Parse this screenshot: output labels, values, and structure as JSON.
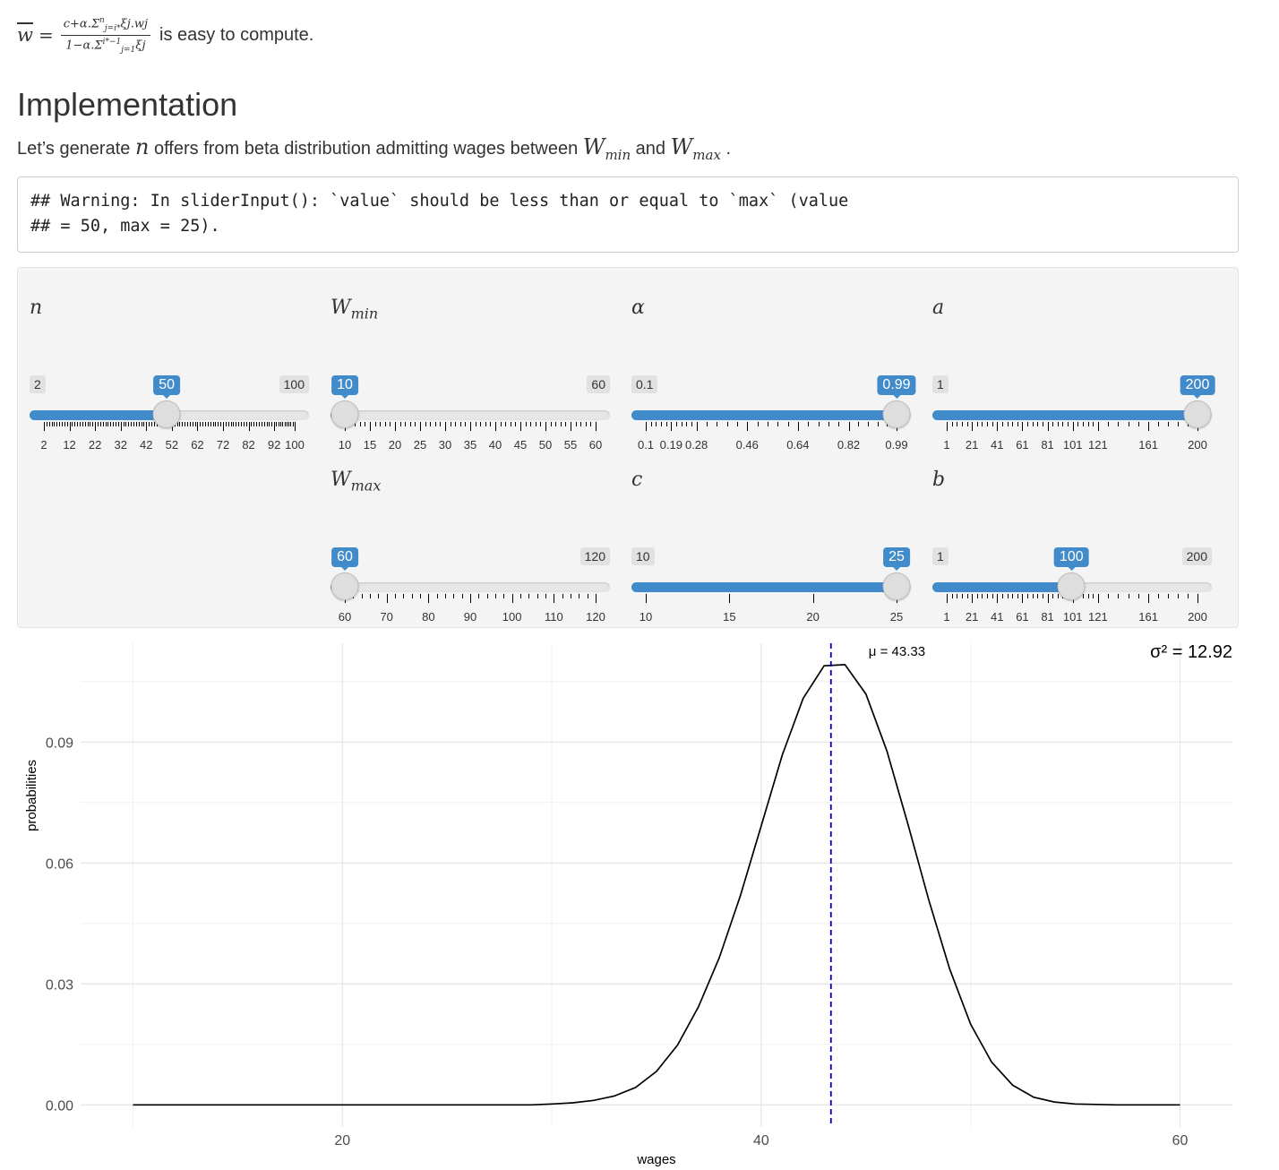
{
  "formula": {
    "lhs": "w",
    "equals": "=",
    "numerator": "c+α.Σ",
    "numerator_sup": "n",
    "numerator_sub": "j=i*",
    "numerator_tail": "ξj.wj",
    "denominator": "1−α.Σ",
    "denominator_sup": "i*−1",
    "denominator_sub": "j=1",
    "denominator_tail": "ξj",
    "tail_text": "is easy to compute."
  },
  "heading": "Implementation",
  "intro": {
    "part1": "Let’s generate ",
    "var_n": "n",
    "part2": " offers from beta distribution admitting wages between ",
    "wmin": "W",
    "wmin_sub": "min",
    "part3": " and ",
    "wmax": "W",
    "wmax_sub": "max",
    "part4": " ."
  },
  "warning": {
    "line1": "## Warning: In sliderInput(): `value` should be less than or equal to `max` (value",
    "line2": "## = 50, max = 25)."
  },
  "sliders": [
    {
      "id": "n",
      "label": "n",
      "sub": "",
      "min": 2,
      "max": 100,
      "value": 50,
      "min_label": "2",
      "max_label": "100",
      "value_label": "50",
      "grid": [
        "2",
        "12",
        "22",
        "32",
        "42",
        "52",
        "62",
        "72",
        "82",
        "92",
        "100"
      ],
      "grid_pos": [
        2,
        12,
        22,
        32,
        42,
        52,
        62,
        72,
        82,
        92,
        100
      ],
      "minor": 9
    },
    {
      "id": "wmin",
      "label": "W",
      "sub": "min",
      "min": 10,
      "max": 60,
      "value": 10,
      "min_label": "10",
      "max_label": "60",
      "value_label": "10",
      "grid": [
        "10",
        "15",
        "20",
        "25",
        "30",
        "35",
        "40",
        "45",
        "50",
        "55",
        "60"
      ],
      "grid_pos": [
        10,
        15,
        20,
        25,
        30,
        35,
        40,
        45,
        50,
        55,
        60
      ],
      "minor": 4
    },
    {
      "id": "alpha",
      "label": "α",
      "sub": "",
      "min": 0.1,
      "max": 0.99,
      "value": 0.99,
      "min_label": "0.1",
      "max_label": "0.99",
      "value_label": "0.99",
      "grid": [
        "0.1",
        "0.19",
        "0.28",
        "0.46",
        "0.64",
        "0.82",
        "0.99"
      ],
      "grid_pos": [
        0.1,
        0.19,
        0.28,
        0.46,
        0.64,
        0.82,
        0.99
      ],
      "minor": 4
    },
    {
      "id": "a",
      "label": "a",
      "sub": "",
      "min": 1,
      "max": 200,
      "value": 200,
      "min_label": "1",
      "max_label": "200",
      "value_label": "200",
      "grid": [
        "1",
        "21",
        "41",
        "61",
        "81",
        "101",
        "121",
        "161",
        "200"
      ],
      "grid_pos": [
        1,
        21,
        41,
        61,
        81,
        101,
        121,
        161,
        200
      ],
      "minor": 4
    },
    {
      "id": "wmax",
      "label": "W",
      "sub": "max",
      "min": 60,
      "max": 120,
      "value": 60,
      "min_label": "60",
      "max_label": "120",
      "value_label": "60",
      "grid": [
        "60",
        "70",
        "80",
        "90",
        "100",
        "110",
        "120"
      ],
      "grid_pos": [
        60,
        70,
        80,
        90,
        100,
        110,
        120
      ],
      "minor": 4
    },
    {
      "id": "c",
      "label": "c",
      "sub": "",
      "min": 10,
      "max": 25,
      "value": 25,
      "min_label": "10",
      "max_label": "25",
      "value_label": "25",
      "grid": [
        "10",
        "15",
        "20",
        "25"
      ],
      "grid_pos": [
        10,
        15,
        20,
        25
      ],
      "minor": 0
    },
    {
      "id": "b",
      "label": "b",
      "sub": "",
      "min": 1,
      "max": 200,
      "value": 100,
      "min_label": "1",
      "max_label": "200",
      "value_label": "100",
      "grid": [
        "1",
        "21",
        "41",
        "61",
        "81",
        "101",
        "121",
        "161",
        "200"
      ],
      "grid_pos": [
        1,
        21,
        41,
        61,
        81,
        101,
        121,
        161,
        200
      ],
      "minor": 4
    }
  ],
  "chart_data": {
    "type": "line",
    "xlabel": "wages",
    "ylabel": "probabilities",
    "xlim": [
      7.5,
      62.5
    ],
    "ylim": [
      -0.0055,
      0.1145
    ],
    "xticks": [
      20,
      40,
      60
    ],
    "yticks": [
      0.0,
      0.03,
      0.06,
      0.09
    ],
    "ytick_labels": [
      "0.00",
      "0.03",
      "0.06",
      "0.09"
    ],
    "grid": true,
    "mean_line": {
      "x": 43.33,
      "label": "μ = 43.33",
      "color": "#0000cc",
      "style": "dashed"
    },
    "variance_label": "σ² = 12.92",
    "x": [
      10,
      11,
      12,
      13,
      14,
      15,
      16,
      17,
      18,
      19,
      20,
      21,
      22,
      23,
      24,
      25,
      26,
      27,
      28,
      29,
      30,
      31,
      32,
      33,
      34,
      35,
      36,
      37,
      38,
      39,
      40,
      41,
      42,
      43,
      44,
      45,
      46,
      47,
      48,
      49,
      50,
      51,
      52,
      53,
      54,
      55,
      56,
      57,
      58,
      59,
      60
    ],
    "values": [
      0,
      0,
      0,
      0,
      0,
      0,
      0,
      0,
      0,
      0,
      0,
      0,
      0,
      0,
      0,
      0,
      0,
      0,
      0,
      0,
      0.0002,
      0.0005,
      0.0011,
      0.0022,
      0.0043,
      0.0083,
      0.0148,
      0.0243,
      0.0365,
      0.0518,
      0.0692,
      0.0867,
      0.1008,
      0.1089,
      0.1092,
      0.1019,
      0.0878,
      0.0697,
      0.0508,
      0.0337,
      0.02,
      0.0106,
      0.0049,
      0.0019,
      0.0007,
      0.0002,
      0.0001,
      0,
      0,
      0,
      0
    ],
    "line_color": "#000000"
  }
}
